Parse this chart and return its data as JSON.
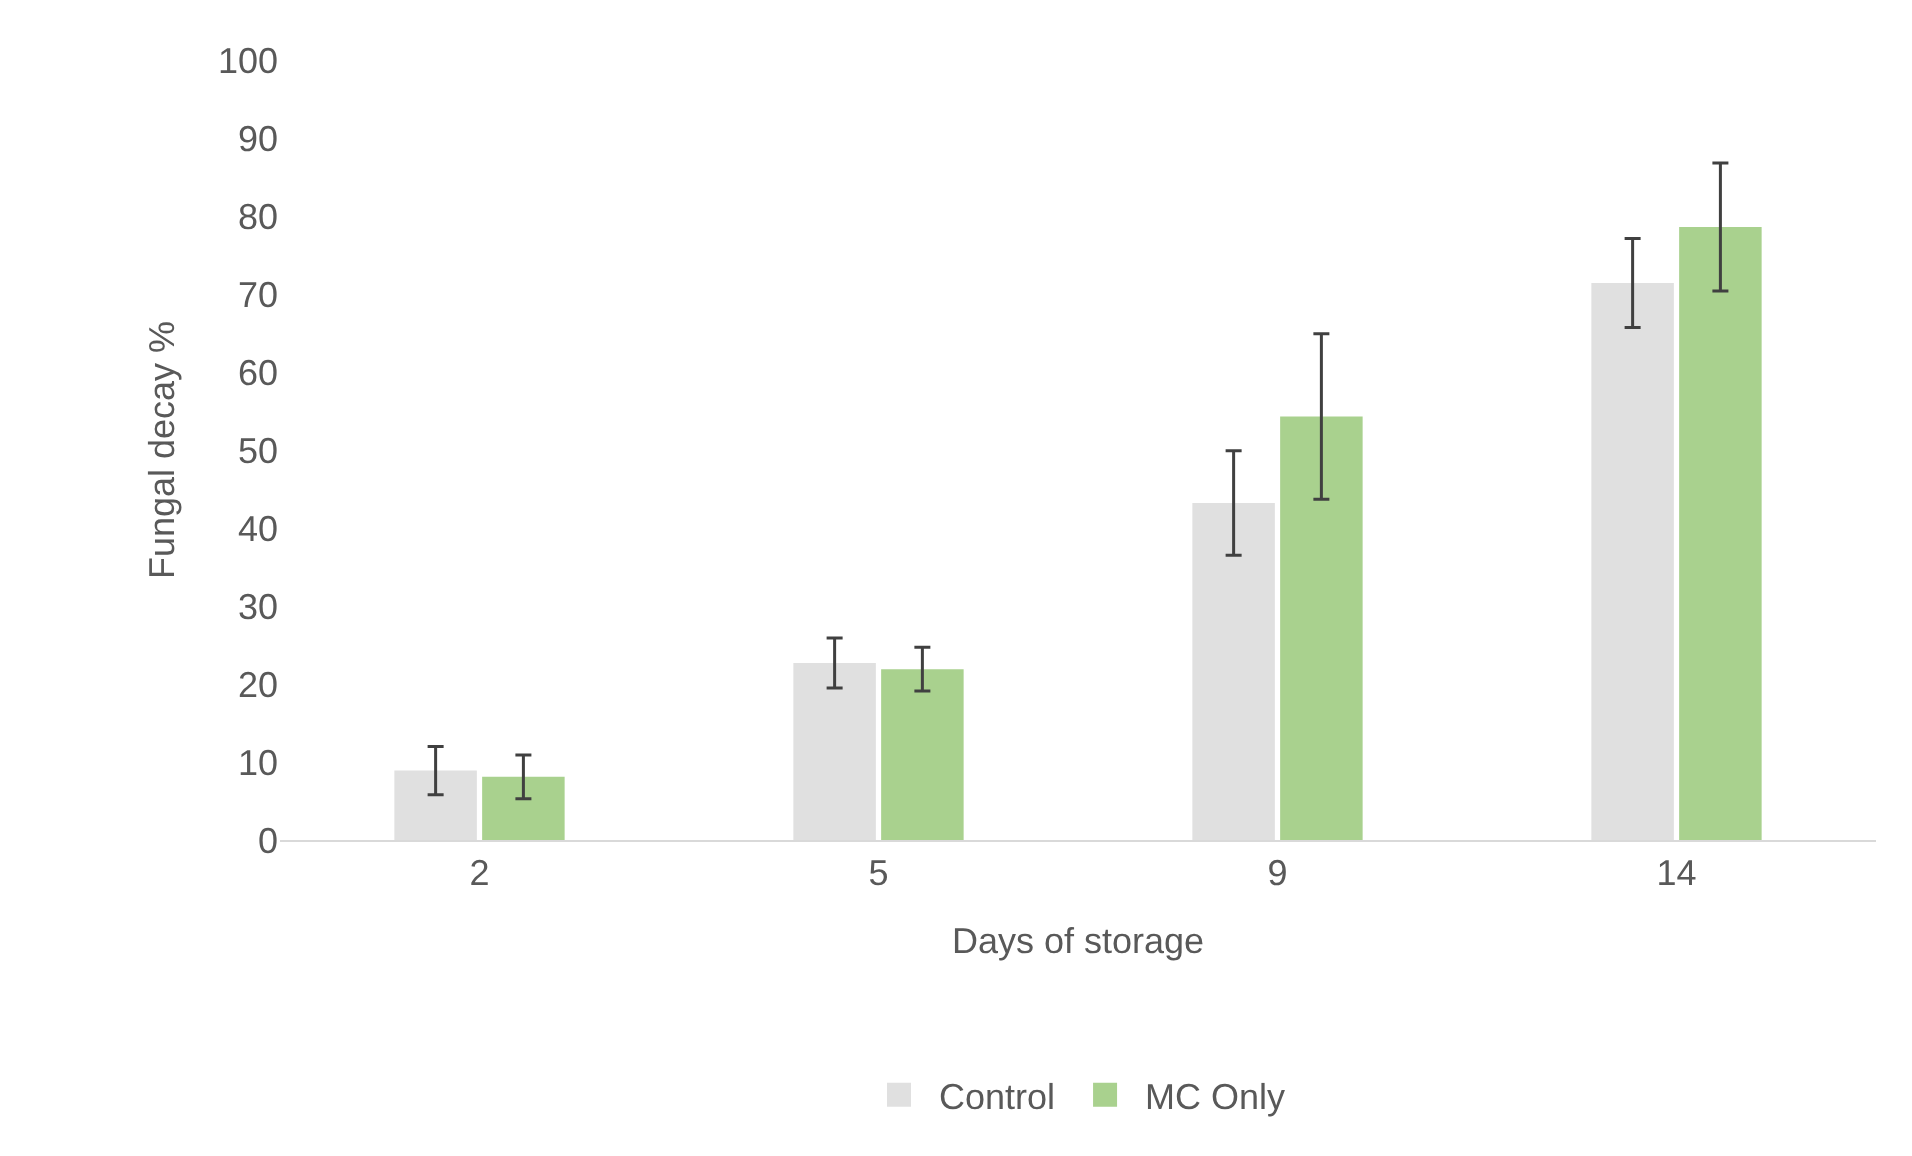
{
  "chart_data": {
    "type": "bar",
    "xlabel": "Days of storage",
    "ylabel": "Fungal decay %",
    "categories": [
      "2",
      "5",
      "9",
      "14"
    ],
    "series": [
      {
        "name": "Control",
        "color": "#e0e0e0",
        "values": [
          8.9,
          22.7,
          43.2,
          71.4
        ],
        "errors": [
          3.1,
          3.2,
          6.7,
          5.7
        ]
      },
      {
        "name": "MC Only",
        "color": "#a9d18e",
        "values": [
          8.1,
          21.9,
          54.3,
          78.6
        ],
        "errors": [
          2.8,
          2.8,
          10.6,
          8.2
        ]
      }
    ],
    "ylim": [
      0,
      100
    ],
    "yticks": [
      0,
      10,
      20,
      30,
      40,
      50,
      60,
      70,
      80,
      90,
      100
    ],
    "grid": false,
    "legend": "bottom"
  }
}
